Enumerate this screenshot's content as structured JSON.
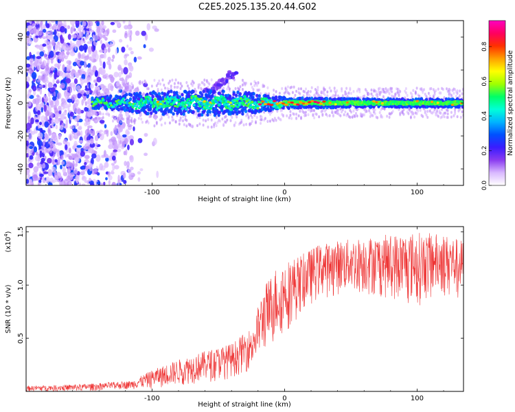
{
  "title": "C2E5.2025.135.20.44.G02",
  "chart_data": [
    {
      "type": "heatmap",
      "name": "spectrogram",
      "xlabel": "Height of straight line (km)",
      "ylabel": "Frequency (Hz)",
      "xlim": [
        -195,
        135
      ],
      "ylim": [
        -50,
        50
      ],
      "xticks": [
        -100,
        0,
        100
      ],
      "xtick_labels": [
        "-100",
        "0",
        "100"
      ],
      "yticks": [
        -40,
        -20,
        0,
        20,
        40
      ],
      "ytick_labels": [
        "-40",
        "-20",
        "0",
        "20",
        "40"
      ],
      "colorbar": {
        "label": "Normalized spectral amplitude",
        "range": [
          0,
          0.95
        ],
        "ticks": [
          0.0,
          0.2,
          0.4,
          0.6,
          0.8
        ],
        "tick_labels": [
          "0.0",
          "0.2",
          "0.4",
          "0.6",
          "0.8"
        ],
        "colormap": [
          "#ffffff",
          "#d9b8ff",
          "#8a3cf0",
          "#3a1cff",
          "#0050ff",
          "#00b4ff",
          "#00ffd8",
          "#00ff66",
          "#a0ff00",
          "#ffff00",
          "#ffa000",
          "#ff3000",
          "#ff0060",
          "#ff00c0"
        ]
      },
      "features": {
        "noise_region_km": [
          -195,
          -115
        ],
        "signal_band_start_km": -145,
        "signal_center_hz": 0,
        "band_halfwidth_hz": [
          [
            -140,
            4
          ],
          [
            -100,
            8
          ],
          [
            -60,
            9
          ],
          [
            -30,
            8
          ],
          [
            0,
            4
          ],
          [
            50,
            3
          ],
          [
            135,
            3
          ]
        ],
        "side_streak": {
          "km": [
            -60,
            -35
          ],
          "hz": [
            5,
            20
          ]
        },
        "peak_segment_km": [
          -20,
          30
        ]
      }
    },
    {
      "type": "line",
      "name": "snr",
      "xlabel": "Height of straight line (km)",
      "ylabel": "SNR (10 * v/v)",
      "scale_label": "(x10",
      "scale_exponent": "4",
      "scale_close": ")",
      "xlim": [
        -195,
        135
      ],
      "ylim": [
        0,
        1.55
      ],
      "xticks": [
        -100,
        0,
        100
      ],
      "xtick_labels": [
        "-100",
        "0",
        "100"
      ],
      "yticks": [
        0.5,
        1.0,
        1.5
      ],
      "ytick_labels": [
        "0.5",
        "1.0",
        "1.5"
      ],
      "color": "#ee3333",
      "envelope": {
        "x": [
          -195,
          -150,
          -115,
          -100,
          -80,
          -60,
          -40,
          -25,
          -15,
          -5,
          5,
          15,
          25,
          40,
          60,
          80,
          100,
          120,
          135
        ],
        "low": [
          0.0,
          0.0,
          0.02,
          0.02,
          0.05,
          0.08,
          0.12,
          0.2,
          0.35,
          0.45,
          0.6,
          0.75,
          0.85,
          0.9,
          0.9,
          0.85,
          0.8,
          0.9,
          0.85
        ],
        "high": [
          0.05,
          0.07,
          0.1,
          0.2,
          0.3,
          0.38,
          0.45,
          0.6,
          1.0,
          1.2,
          1.25,
          1.3,
          1.38,
          1.42,
          1.45,
          1.48,
          1.5,
          1.48,
          1.42
        ]
      }
    }
  ]
}
